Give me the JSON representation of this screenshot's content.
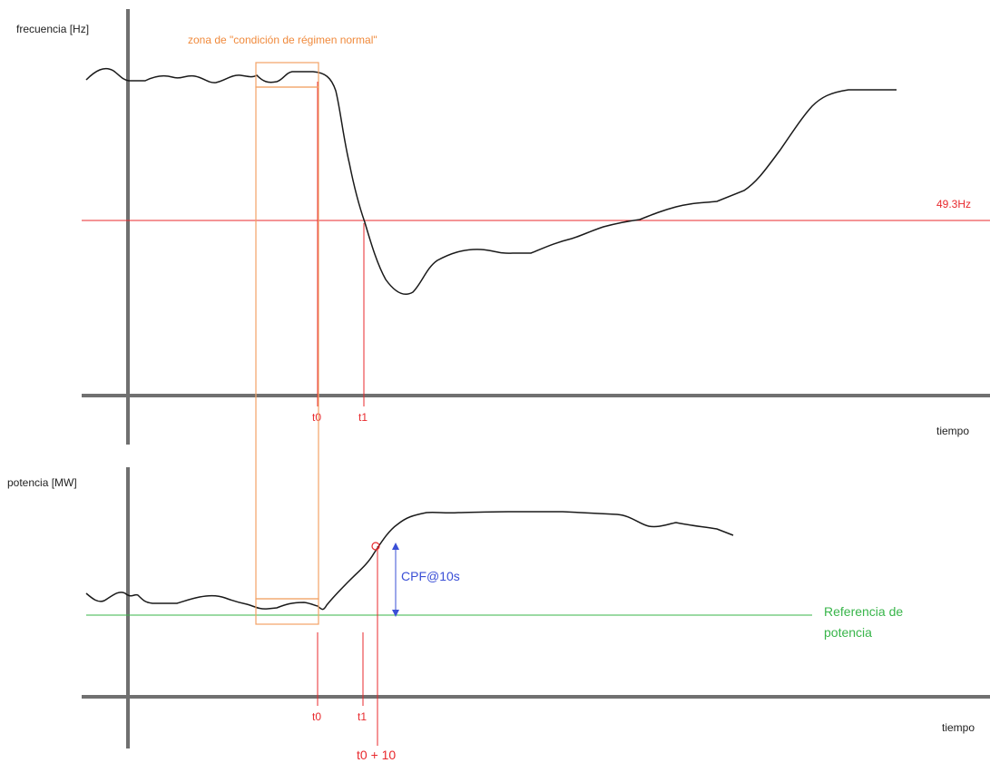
{
  "colors": {
    "axis": "#707070",
    "curve": "#1a1a1a",
    "threshold": "#e8292d",
    "marker": "#e8292d",
    "zone": "#f2a266",
    "zone_label": "#f08a3c",
    "reference": "#38b54a",
    "cpf": "#3a4fd6",
    "text": "#222222"
  },
  "top_chart": {
    "ylabel": "frecuencia [Hz]",
    "xlabel": "tiempo",
    "threshold_label": "49.3Hz",
    "marker_t0": "t0",
    "marker_t1": "t1"
  },
  "bottom_chart": {
    "ylabel": "potencia [MW]",
    "xlabel": "tiempo",
    "marker_t0": "t0",
    "marker_t1": "t1",
    "marker_t10": "t0 + 10",
    "cpf_label": "CPF@10s",
    "reference_label_line1": "Referencia de",
    "reference_label_line2": "potencia"
  },
  "zone_label": "zona de \"condición de régimen normal\""
}
